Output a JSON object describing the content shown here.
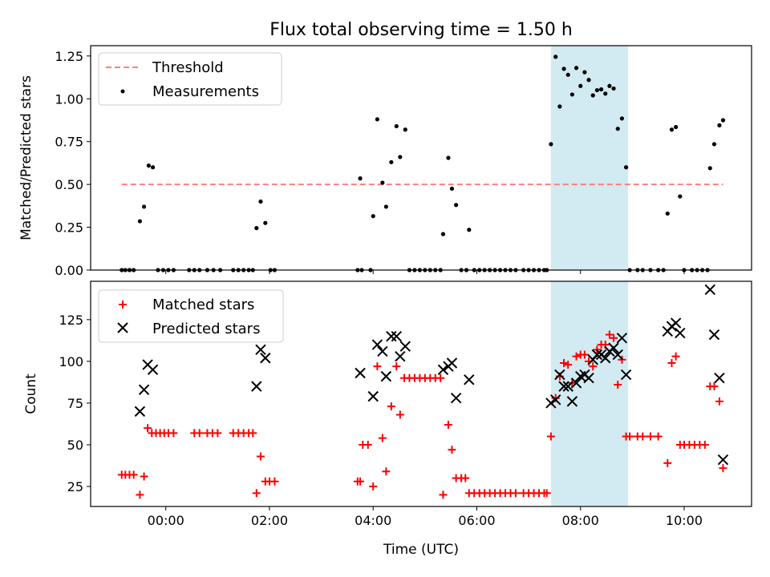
{
  "title": "Flux total observing time = 1.50 h",
  "colors": {
    "threshold": "#ff7f7f",
    "measurement": "#000000",
    "matched": "#ff0000",
    "predicted": "#000000",
    "highlight": "#add8e6"
  },
  "chart_data": [
    {
      "type": "scatter",
      "name": "ratio",
      "ylabel": "Matched/Predicted stars",
      "xlabel": "",
      "xlim": [
        -1.45,
        11.3
      ],
      "ylim": [
        0.0,
        1.31
      ],
      "xticks": [
        0,
        2,
        4,
        6,
        8,
        10
      ],
      "xtick_labels": [
        "00:00",
        "02:00",
        "04:00",
        "06:00",
        "08:00",
        "10:00"
      ],
      "yticks": [
        0.0,
        0.25,
        0.5,
        0.75,
        1.0,
        1.25
      ],
      "ytick_labels": [
        "0.00",
        "0.25",
        "0.50",
        "0.75",
        "1.00",
        "1.25"
      ],
      "highlight_span": [
        7.43,
        8.92
      ],
      "threshold": {
        "label": "Threshold",
        "value": 0.5,
        "x_range": [
          -0.85,
          10.75
        ]
      },
      "legend": {
        "position": "top-left",
        "entries": [
          "Threshold",
          "Measurements"
        ]
      },
      "series": [
        {
          "name": "Measurements",
          "points": [
            [
              -0.85,
              0
            ],
            [
              -0.78,
              0
            ],
            [
              -0.7,
              0
            ],
            [
              -0.62,
              0
            ],
            [
              -0.5,
              0.285
            ],
            [
              -0.42,
              0.37
            ],
            [
              -0.33,
              0.61
            ],
            [
              -0.25,
              0.6
            ],
            [
              -0.15,
              0
            ],
            [
              -0.05,
              0
            ],
            [
              0.05,
              0
            ],
            [
              0.15,
              0
            ],
            [
              0.45,
              0
            ],
            [
              0.55,
              0
            ],
            [
              0.65,
              0
            ],
            [
              0.8,
              0
            ],
            [
              0.92,
              0
            ],
            [
              1.05,
              0
            ],
            [
              1.3,
              0
            ],
            [
              1.4,
              0
            ],
            [
              1.5,
              0
            ],
            [
              1.6,
              0
            ],
            [
              1.68,
              0
            ],
            [
              1.75,
              0.245
            ],
            [
              1.83,
              0.4
            ],
            [
              1.92,
              0.275
            ],
            [
              2.02,
              0
            ],
            [
              2.1,
              0
            ],
            [
              3.7,
              0
            ],
            [
              3.78,
              0
            ],
            [
              3.75,
              0.535
            ],
            [
              3.95,
              0
            ],
            [
              4.0,
              0.315
            ],
            [
              4.08,
              0.88
            ],
            [
              4.18,
              0.51
            ],
            [
              4.25,
              0.37
            ],
            [
              4.35,
              0.63
            ],
            [
              4.45,
              0.84
            ],
            [
              4.52,
              0.66
            ],
            [
              4.62,
              0.82
            ],
            [
              4.7,
              0
            ],
            [
              4.8,
              0
            ],
            [
              4.9,
              0
            ],
            [
              5.0,
              0
            ],
            [
              5.1,
              0
            ],
            [
              5.2,
              0
            ],
            [
              5.3,
              0
            ],
            [
              5.35,
              0.21
            ],
            [
              5.45,
              0.655
            ],
            [
              5.52,
              0.475
            ],
            [
              5.6,
              0.38
            ],
            [
              5.7,
              0
            ],
            [
              5.8,
              0
            ],
            [
              5.85,
              0.235
            ],
            [
              5.95,
              0
            ],
            [
              6.05,
              0
            ],
            [
              6.15,
              0
            ],
            [
              6.25,
              0
            ],
            [
              6.35,
              0
            ],
            [
              6.45,
              0
            ],
            [
              6.55,
              0
            ],
            [
              6.65,
              0
            ],
            [
              6.75,
              0
            ],
            [
              6.9,
              0
            ],
            [
              7.0,
              0
            ],
            [
              7.1,
              0
            ],
            [
              7.2,
              0
            ],
            [
              7.3,
              0
            ],
            [
              7.35,
              0
            ],
            [
              7.43,
              0.735
            ],
            [
              7.52,
              1.245
            ],
            [
              7.6,
              0.955
            ],
            [
              7.68,
              1.175
            ],
            [
              7.76,
              1.14
            ],
            [
              7.84,
              1.025
            ],
            [
              7.92,
              1.18
            ],
            [
              8.0,
              1.075
            ],
            [
              8.08,
              1.155
            ],
            [
              8.16,
              1.11
            ],
            [
              8.24,
              1.02
            ],
            [
              8.32,
              1.05
            ],
            [
              8.4,
              1.055
            ],
            [
              8.48,
              1.03
            ],
            [
              8.56,
              1.075
            ],
            [
              8.64,
              1.06
            ],
            [
              8.72,
              0.825
            ],
            [
              8.8,
              0.885
            ],
            [
              8.88,
              0.6
            ],
            [
              8.95,
              0
            ],
            [
              9.1,
              0
            ],
            [
              9.2,
              0
            ],
            [
              9.35,
              0
            ],
            [
              9.5,
              0
            ],
            [
              9.6,
              0
            ],
            [
              9.68,
              0.33
            ],
            [
              9.76,
              0.82
            ],
            [
              9.84,
              0.835
            ],
            [
              9.92,
              0.43
            ],
            [
              10.0,
              0
            ],
            [
              10.15,
              0
            ],
            [
              10.25,
              0
            ],
            [
              10.35,
              0
            ],
            [
              10.45,
              0
            ],
            [
              10.5,
              0.595
            ],
            [
              10.58,
              0.735
            ],
            [
              10.68,
              0.845
            ],
            [
              10.75,
              0.875
            ]
          ]
        }
      ]
    },
    {
      "type": "scatter",
      "name": "counts",
      "ylabel": "Count",
      "xlabel": "Time (UTC)",
      "xlim": [
        -1.45,
        11.3
      ],
      "ylim": [
        13,
        148
      ],
      "xticks": [
        0,
        2,
        4,
        6,
        8,
        10
      ],
      "xtick_labels": [
        "00:00",
        "02:00",
        "04:00",
        "06:00",
        "08:00",
        "10:00"
      ],
      "yticks": [
        25,
        50,
        75,
        100,
        125
      ],
      "ytick_labels": [
        "25",
        "50",
        "75",
        "100",
        "125"
      ],
      "highlight_span": [
        7.43,
        8.92
      ],
      "legend": {
        "position": "top-left",
        "entries": [
          "Matched stars",
          "Predicted stars"
        ]
      },
      "series": [
        {
          "name": "Matched stars",
          "marker": "plus",
          "points": [
            [
              -0.85,
              32
            ],
            [
              -0.78,
              32
            ],
            [
              -0.7,
              32
            ],
            [
              -0.62,
              32
            ],
            [
              -0.5,
              20
            ],
            [
              -0.42,
              31
            ],
            [
              -0.35,
              60
            ],
            [
              -0.27,
              57
            ],
            [
              -0.19,
              57
            ],
            [
              -0.11,
              57
            ],
            [
              -0.03,
              57
            ],
            [
              0.05,
              57
            ],
            [
              0.15,
              57
            ],
            [
              0.55,
              57
            ],
            [
              0.65,
              57
            ],
            [
              0.8,
              57
            ],
            [
              0.9,
              57
            ],
            [
              1.0,
              57
            ],
            [
              1.3,
              57
            ],
            [
              1.4,
              57
            ],
            [
              1.5,
              57
            ],
            [
              1.6,
              57
            ],
            [
              1.68,
              57
            ],
            [
              1.75,
              21
            ],
            [
              1.83,
              43
            ],
            [
              1.92,
              28
            ],
            [
              2.0,
              28
            ],
            [
              2.1,
              28
            ],
            [
              3.7,
              28
            ],
            [
              3.75,
              28
            ],
            [
              3.8,
              50
            ],
            [
              3.9,
              50
            ],
            [
              4.0,
              25
            ],
            [
              4.08,
              97
            ],
            [
              4.18,
              54
            ],
            [
              4.25,
              34
            ],
            [
              4.35,
              73
            ],
            [
              4.45,
              97
            ],
            [
              4.52,
              68
            ],
            [
              4.6,
              90
            ],
            [
              4.7,
              90
            ],
            [
              4.8,
              90
            ],
            [
              4.9,
              90
            ],
            [
              5.0,
              90
            ],
            [
              5.1,
              90
            ],
            [
              5.2,
              90
            ],
            [
              5.3,
              90
            ],
            [
              5.35,
              20
            ],
            [
              5.45,
              62
            ],
            [
              5.52,
              47
            ],
            [
              5.6,
              30
            ],
            [
              5.7,
              30
            ],
            [
              5.78,
              30
            ],
            [
              5.85,
              21
            ],
            [
              5.95,
              21
            ],
            [
              6.05,
              21
            ],
            [
              6.15,
              21
            ],
            [
              6.25,
              21
            ],
            [
              6.35,
              21
            ],
            [
              6.45,
              21
            ],
            [
              6.55,
              21
            ],
            [
              6.65,
              21
            ],
            [
              6.75,
              21
            ],
            [
              6.9,
              21
            ],
            [
              7.0,
              21
            ],
            [
              7.1,
              21
            ],
            [
              7.2,
              21
            ],
            [
              7.3,
              21
            ],
            [
              7.35,
              21
            ],
            [
              7.43,
              55
            ],
            [
              7.52,
              78
            ],
            [
              7.6,
              91
            ],
            [
              7.68,
              99
            ],
            [
              7.76,
              98
            ],
            [
              7.84,
              87
            ],
            [
              7.92,
              103
            ],
            [
              8.0,
              104
            ],
            [
              8.08,
              104
            ],
            [
              8.16,
              100
            ],
            [
              8.24,
              97
            ],
            [
              8.32,
              107
            ],
            [
              8.4,
              110
            ],
            [
              8.48,
              110
            ],
            [
              8.56,
              116
            ],
            [
              8.64,
              114
            ],
            [
              8.72,
              86
            ],
            [
              8.8,
              101
            ],
            [
              8.88,
              55
            ],
            [
              8.95,
              55
            ],
            [
              9.1,
              55
            ],
            [
              9.2,
              55
            ],
            [
              9.35,
              55
            ],
            [
              9.5,
              55
            ],
            [
              9.68,
              39
            ],
            [
              9.76,
              99
            ],
            [
              9.84,
              103
            ],
            [
              9.92,
              50
            ],
            [
              10.0,
              50
            ],
            [
              10.1,
              50
            ],
            [
              10.2,
              50
            ],
            [
              10.3,
              50
            ],
            [
              10.4,
              50
            ],
            [
              10.5,
              85
            ],
            [
              10.58,
              85
            ],
            [
              10.68,
              76
            ],
            [
              10.75,
              36
            ]
          ]
        },
        {
          "name": "Predicted stars",
          "marker": "x",
          "points": [
            [
              -0.5,
              70
            ],
            [
              -0.42,
              83
            ],
            [
              -0.35,
              98
            ],
            [
              -0.25,
              95
            ],
            [
              1.75,
              85
            ],
            [
              1.83,
              107
            ],
            [
              1.92,
              102
            ],
            [
              3.75,
              93
            ],
            [
              4.0,
              79
            ],
            [
              4.08,
              110
            ],
            [
              4.18,
              106
            ],
            [
              4.25,
              91
            ],
            [
              4.35,
              115
            ],
            [
              4.45,
              115
            ],
            [
              4.52,
              103
            ],
            [
              4.62,
              109
            ],
            [
              5.35,
              95
            ],
            [
              5.45,
              97
            ],
            [
              5.52,
              99
            ],
            [
              5.6,
              78
            ],
            [
              5.85,
              89
            ],
            [
              7.43,
              75
            ],
            [
              7.52,
              77
            ],
            [
              7.6,
              92
            ],
            [
              7.68,
              85
            ],
            [
              7.76,
              85
            ],
            [
              7.84,
              76
            ],
            [
              7.92,
              87
            ],
            [
              8.0,
              91
            ],
            [
              8.08,
              92
            ],
            [
              8.16,
              90
            ],
            [
              8.24,
              101
            ],
            [
              8.32,
              104
            ],
            [
              8.4,
              104
            ],
            [
              8.48,
              102
            ],
            [
              8.56,
              106
            ],
            [
              8.64,
              108
            ],
            [
              8.72,
              104
            ],
            [
              8.8,
              114
            ],
            [
              8.88,
              92
            ],
            [
              9.68,
              118
            ],
            [
              9.76,
              121
            ],
            [
              9.84,
              123
            ],
            [
              9.92,
              117
            ],
            [
              10.5,
              143
            ],
            [
              10.58,
              116
            ],
            [
              10.68,
              90
            ],
            [
              10.75,
              41
            ]
          ]
        }
      ]
    }
  ]
}
